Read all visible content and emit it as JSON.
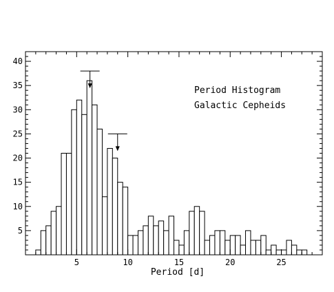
{
  "chart_data": {
    "type": "bar",
    "xlabel": "Period [d]",
    "ylabel": "",
    "annotation_lines": [
      "Period Histogram",
      "Galactic Cepheids"
    ],
    "xlim": [
      0,
      29
    ],
    "ylim": [
      0,
      42
    ],
    "x_ticks": [
      5,
      10,
      15,
      20,
      25
    ],
    "y_ticks": [
      5,
      10,
      15,
      20,
      25,
      30,
      35,
      40
    ],
    "bin_width": 0.5,
    "bin_starts": [
      1.0,
      1.5,
      2.0,
      2.5,
      3.0,
      3.5,
      4.0,
      4.5,
      5.0,
      5.5,
      6.0,
      6.5,
      7.0,
      7.5,
      8.0,
      8.5,
      9.0,
      9.5,
      10.0,
      10.5,
      11.0,
      11.5,
      12.0,
      12.5,
      13.0,
      13.5,
      14.0,
      14.5,
      15.0,
      15.5,
      16.0,
      16.5,
      17.0,
      17.5,
      18.0,
      18.5,
      19.0,
      19.5,
      20.0,
      20.5,
      21.0,
      21.5,
      22.0,
      22.5,
      23.0,
      23.5,
      24.0,
      24.5,
      25.0,
      25.5,
      26.0,
      26.5,
      27.0
    ],
    "values": [
      1,
      5,
      6,
      9,
      10,
      21,
      21,
      30,
      32,
      29,
      36,
      31,
      26,
      12,
      22,
      20,
      15,
      14,
      4,
      4,
      5,
      6,
      8,
      6,
      7,
      5,
      8,
      3,
      2,
      5,
      9,
      10,
      9,
      3,
      4,
      5,
      5,
      3,
      4,
      4,
      2,
      5,
      3,
      3,
      4,
      1,
      2,
      1,
      1,
      3,
      2,
      1,
      1
    ],
    "upper_limit_markers": [
      {
        "x": 6.3,
        "y": 38
      },
      {
        "x": 9.0,
        "y": 25
      }
    ],
    "grid": false,
    "legend": "none"
  }
}
